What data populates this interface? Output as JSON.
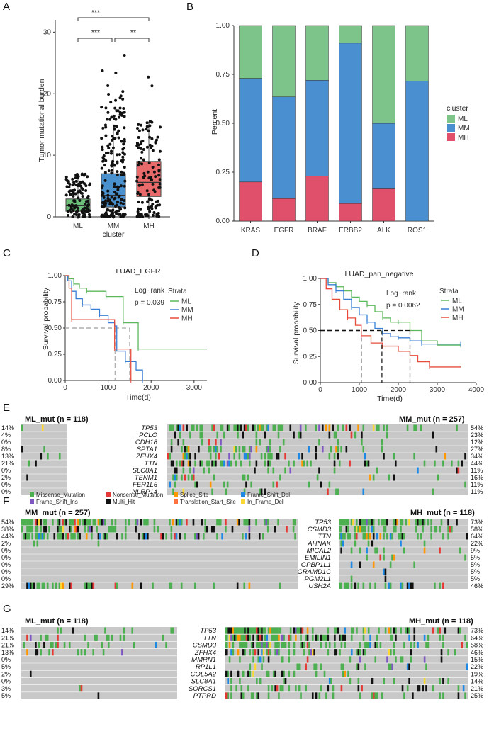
{
  "panels": {
    "A": "A",
    "B": "B",
    "C": "C",
    "D": "D",
    "E": "E",
    "F": "F",
    "G": "G"
  },
  "panelA": {
    "ylabel": "Tumor mutational burden",
    "xlabel": "cluster",
    "yticks": [
      "0",
      "10",
      "20",
      "30"
    ],
    "groups": [
      {
        "label": "ML",
        "color": "#6cc07a",
        "q1": 0.9,
        "median": 1.8,
        "q3": 2.9,
        "lo": 0.1,
        "hi": 6.2
      },
      {
        "label": "MM",
        "color": "#4a90cc",
        "q1": 1.6,
        "median": 3.5,
        "q3": 7.0,
        "lo": 0.1,
        "hi": 15.0
      },
      {
        "label": "MH",
        "color": "#e86a6a",
        "q1": 3.3,
        "median": 5.6,
        "q3": 9.0,
        "lo": 0.2,
        "hi": 15.5
      }
    ],
    "sig": [
      "***",
      "***",
      "**"
    ]
  },
  "chart_data": [
    {
      "type": "bar",
      "ylabel": "Percent",
      "categories": [
        "KRAS",
        "EGFR",
        "BRAF",
        "ERBB2",
        "ALK",
        "ROS1"
      ],
      "ylim": [
        0,
        1
      ],
      "yticks": [
        "0.00",
        "0.25",
        "0.50",
        "0.75",
        "1.00"
      ],
      "legend_title": "cluster",
      "series": [
        {
          "name": "MH",
          "color": "#e0506a",
          "values": [
            0.2,
            0.115,
            0.23,
            0.09,
            0.165,
            0.0
          ]
        },
        {
          "name": "MM",
          "color": "#4a90d0",
          "values": [
            0.53,
            0.52,
            0.49,
            0.82,
            0.335,
            0.715
          ]
        },
        {
          "name": "ML",
          "color": "#7cc48a",
          "values": [
            0.27,
            0.365,
            0.28,
            0.09,
            0.5,
            0.285
          ]
        }
      ]
    },
    {
      "type": "line",
      "title": "LUAD_EGFR",
      "xlabel": "Time(d)",
      "ylabel": "Survival probability",
      "xticks": [
        "0",
        "1000",
        "2000",
        "3000"
      ],
      "yticks": [
        "0.00",
        "0.25",
        "0.50",
        "0.75",
        "1.00"
      ],
      "legend_title": "Strata",
      "annotation": [
        "Log−rank",
        "p = 0.039"
      ],
      "xlim": [
        0,
        3300
      ],
      "series": [
        {
          "name": "ML",
          "color": "#5cb85c",
          "points": [
            [
              0,
              1
            ],
            [
              80,
              0.97
            ],
            [
              200,
              0.92
            ],
            [
              330,
              0.88
            ],
            [
              500,
              0.85
            ],
            [
              700,
              0.85
            ],
            [
              950,
              0.8
            ],
            [
              1250,
              0.8
            ],
            [
              1350,
              0.55
            ],
            [
              1600,
              0.55
            ],
            [
              1700,
              0.3
            ],
            [
              3300,
              0.3
            ]
          ]
        },
        {
          "name": "MM",
          "color": "#3a7fd5",
          "points": [
            [
              0,
              1
            ],
            [
              60,
              0.95
            ],
            [
              150,
              0.85
            ],
            [
              250,
              0.78
            ],
            [
              400,
              0.72
            ],
            [
              600,
              0.68
            ],
            [
              800,
              0.62
            ],
            [
              1000,
              0.55
            ],
            [
              1150,
              0.52
            ],
            [
              1200,
              0.28
            ],
            [
              1400,
              0.18
            ],
            [
              1650,
              0.1
            ],
            [
              1800,
              0.0
            ]
          ]
        },
        {
          "name": "MH",
          "color": "#e74c3c",
          "points": [
            [
              0,
              1
            ],
            [
              90,
              0.88
            ],
            [
              150,
              0.58
            ],
            [
              1100,
              0.58
            ],
            [
              1150,
              0.3
            ],
            [
              1500,
              0.3
            ],
            [
              1530,
              0.0
            ]
          ]
        }
      ]
    },
    {
      "type": "line",
      "title": "LUAD_pan_negative",
      "xlabel": "Time(d)",
      "ylabel": "Survival probability",
      "xticks": [
        "0",
        "1000",
        "2000",
        "3000",
        "4000"
      ],
      "yticks": [
        "0.00",
        "0.25",
        "0.50",
        "0.75",
        "1.00"
      ],
      "legend_title": "Strata",
      "annotation": [
        "Log−rank",
        "p = 0.0062"
      ],
      "xlim": [
        0,
        4000
      ],
      "series": [
        {
          "name": "ML",
          "color": "#5cb85c",
          "points": [
            [
              0,
              1
            ],
            [
              200,
              0.96
            ],
            [
              400,
              0.92
            ],
            [
              600,
              0.88
            ],
            [
              800,
              0.82
            ],
            [
              1000,
              0.78
            ],
            [
              1200,
              0.74
            ],
            [
              1400,
              0.68
            ],
            [
              1600,
              0.62
            ],
            [
              1800,
              0.58
            ],
            [
              2000,
              0.58
            ],
            [
              2300,
              0.5
            ],
            [
              2600,
              0.4
            ],
            [
              3000,
              0.36
            ],
            [
              3600,
              0.36
            ]
          ]
        },
        {
          "name": "MM",
          "color": "#3a7fd5",
          "points": [
            [
              0,
              1
            ],
            [
              200,
              0.94
            ],
            [
              400,
              0.88
            ],
            [
              600,
              0.8
            ],
            [
              800,
              0.72
            ],
            [
              1000,
              0.65
            ],
            [
              1200,
              0.58
            ],
            [
              1400,
              0.52
            ],
            [
              1600,
              0.47
            ],
            [
              1800,
              0.44
            ],
            [
              2000,
              0.43
            ],
            [
              2300,
              0.4
            ],
            [
              2600,
              0.37
            ],
            [
              3000,
              0.37
            ],
            [
              3600,
              0.37
            ]
          ]
        },
        {
          "name": "MH",
          "color": "#e74c3c",
          "points": [
            [
              0,
              1
            ],
            [
              150,
              0.9
            ],
            [
              300,
              0.8
            ],
            [
              500,
              0.7
            ],
            [
              700,
              0.62
            ],
            [
              900,
              0.55
            ],
            [
              1050,
              0.45
            ],
            [
              1300,
              0.38
            ],
            [
              1600,
              0.35
            ],
            [
              2000,
              0.3
            ],
            [
              2300,
              0.26
            ],
            [
              2500,
              0.2
            ],
            [
              2800,
              0.15
            ],
            [
              3600,
              0.15
            ]
          ]
        }
      ]
    }
  ],
  "panelE": {
    "left_title": "ML_mut (n = 118)",
    "right_title": "MM_mut (n = 257)",
    "genes": [
      "TP53",
      "PCLO",
      "CDH18",
      "SPTA1",
      "ZFHX4",
      "TTN",
      "SLC8A1",
      "TENM1",
      "FER1L6",
      "NLRP14"
    ],
    "left_pct": [
      "14%",
      "4%",
      "0%",
      "8%",
      "13%",
      "21%",
      "0%",
      "2%",
      "0%",
      "0%"
    ],
    "right_pct": [
      "54%",
      "23%",
      "12%",
      "27%",
      "34%",
      "44%",
      "11%",
      "16%",
      "11%",
      "11%"
    ],
    "legend": [
      {
        "label": "Missense_Mutation",
        "color": "#4caf50"
      },
      {
        "label": "Nonsense_Mutation",
        "color": "#e53935"
      },
      {
        "label": "Splice_Site",
        "color": "#ff9800"
      },
      {
        "label": "Frame_Shift_Del",
        "color": "#1e88e5"
      },
      {
        "label": "Frame_Shift_Ins",
        "color": "#7e57c2"
      },
      {
        "label": "Multi_Hit",
        "color": "#111111"
      },
      {
        "label": "Translation_Start_Site",
        "color": "#ff7043"
      },
      {
        "label": "In_Frame_Del",
        "color": "#fdd835"
      }
    ]
  },
  "panelF": {
    "left_title": "MM_mut (n = 257)",
    "right_title": "MH_mut (n = 118)",
    "genes": [
      "TP53",
      "CSMD3",
      "TTN",
      "AHNAK",
      "MICAL2",
      "EMILIN1",
      "GPBP1L1",
      "GRAMD1C",
      "PGM2L1",
      "USH2A"
    ],
    "left_pct": [
      "54%",
      "38%",
      "44%",
      "2%",
      "0%",
      "0%",
      "0%",
      "0%",
      "0%",
      "29%"
    ],
    "right_pct": [
      "73%",
      "58%",
      "64%",
      "22%",
      "9%",
      "5%",
      "5%",
      "5%",
      "5%",
      "46%"
    ]
  },
  "panelG": {
    "left_title": "ML_mut (n = 118)",
    "right_title": "MH_mut (n = 118)",
    "genes": [
      "TP53",
      "TTN",
      "CSMD3",
      "ZFHX4",
      "MMRN1",
      "RP1L1",
      "COL5A2",
      "SLC8A1",
      "SORCS1",
      "PTPRD"
    ],
    "left_pct": [
      "14%",
      "21%",
      "21%",
      "13%",
      "0%",
      "5%",
      "2%",
      "0%",
      "3%",
      "5%"
    ],
    "right_pct": [
      "73%",
      "64%",
      "58%",
      "46%",
      "15%",
      "22%",
      "19%",
      "14%",
      "21%",
      "25%"
    ]
  }
}
